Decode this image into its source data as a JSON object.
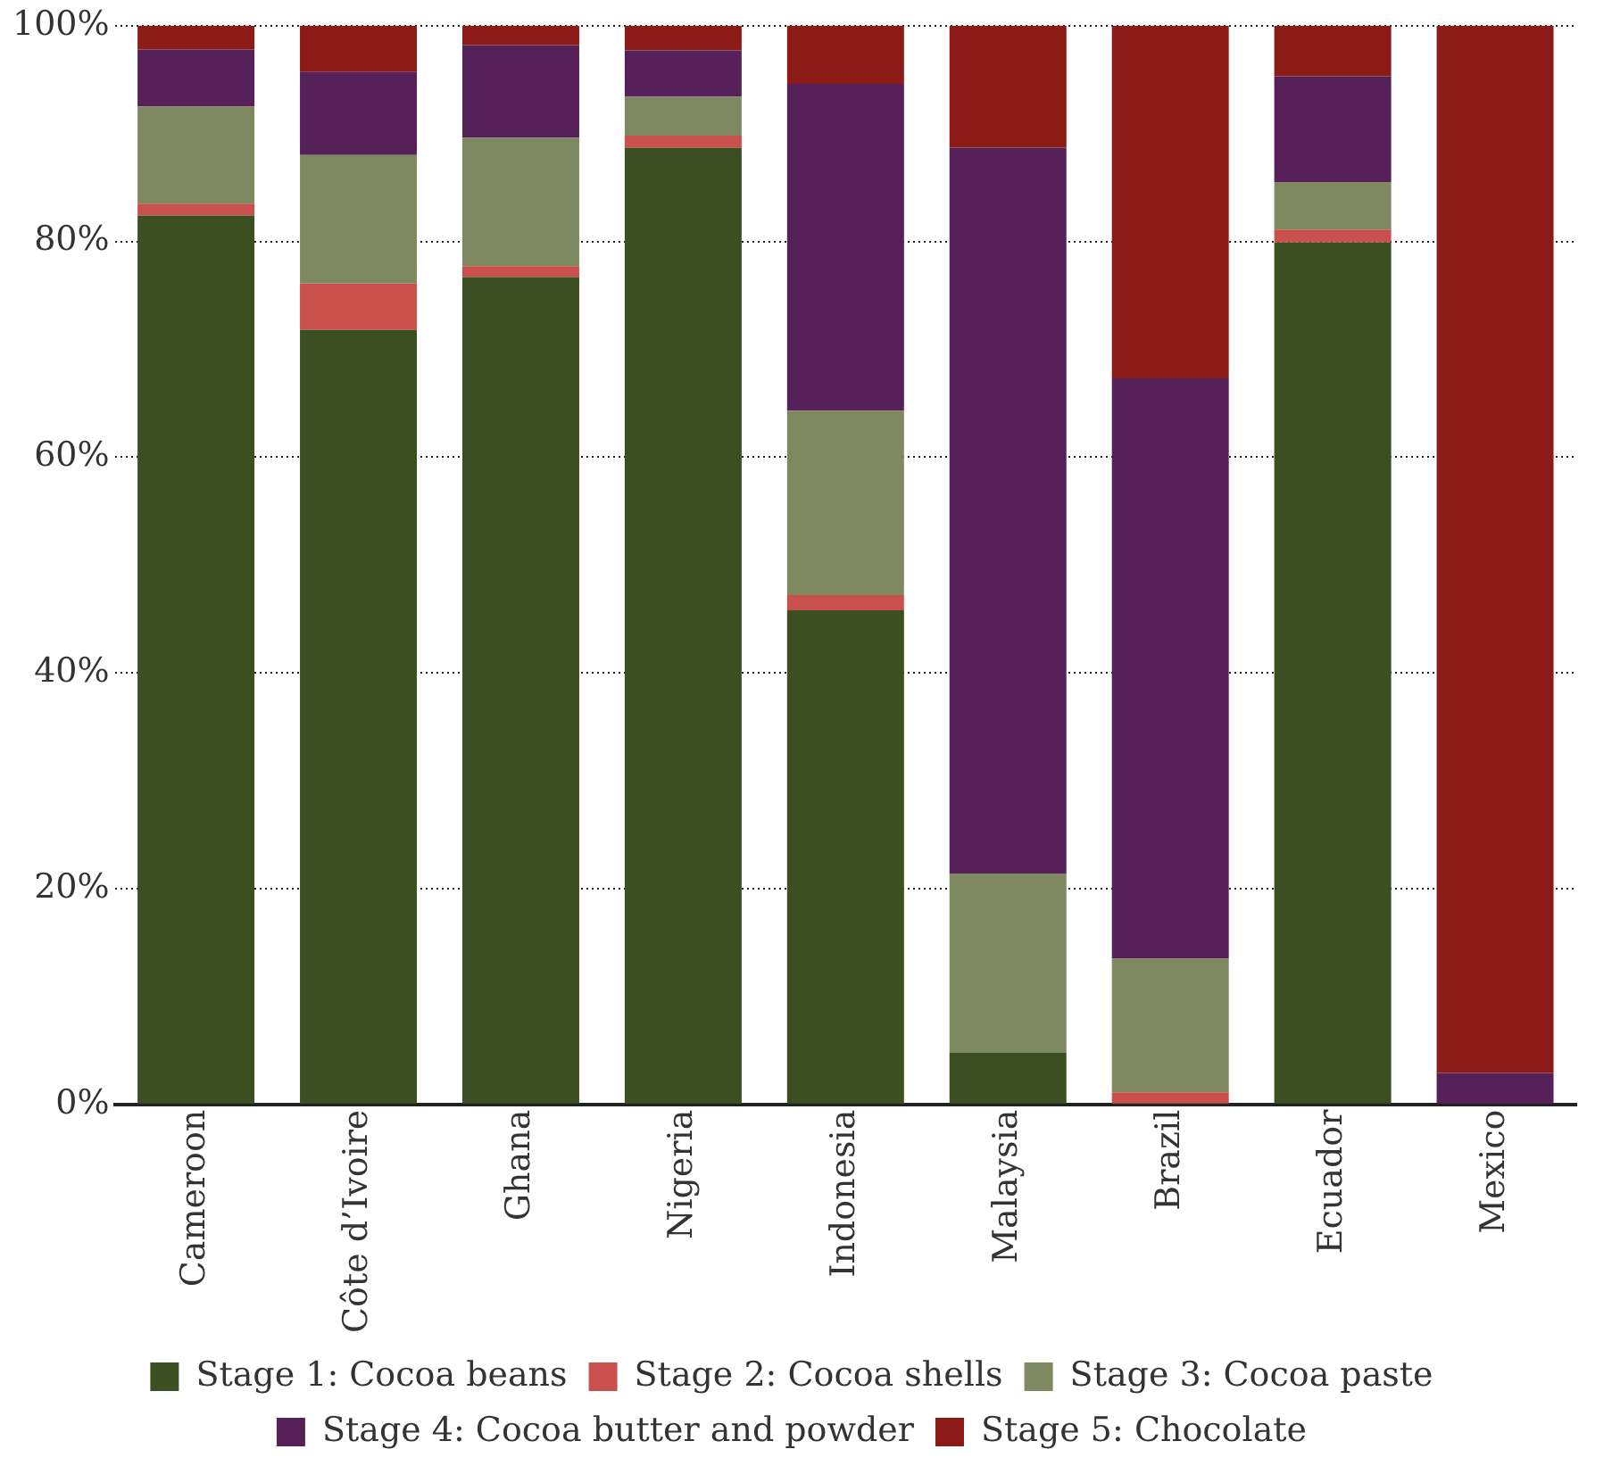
{
  "chart_data": {
    "type": "bar",
    "stacked": true,
    "categories": [
      "Cameroon",
      "Côte d’Ivoire",
      "Ghana",
      "Nigeria",
      "Indonesia",
      "Malaysia",
      "Brazil",
      "Ecuador",
      "Mexico"
    ],
    "series": [
      {
        "name": "Stage 1: Cocoa beans",
        "color": "#3b4f22",
        "values": [
          82.4,
          71.8,
          76.7,
          88.7,
          45.8,
          4.8,
          0,
          79.9,
          0
        ]
      },
      {
        "name": "Stage 2: Cocoa shells",
        "color": "#c9504d",
        "values": [
          1.1,
          4.3,
          1.0,
          1.1,
          1.4,
          0,
          1.1,
          1.2,
          0
        ]
      },
      {
        "name": "Stage 3: Cocoa paste",
        "color": "#7f8961",
        "values": [
          9.0,
          11.9,
          11.9,
          3.6,
          17.1,
          16.6,
          12.4,
          4.4,
          0
        ]
      },
      {
        "name": "Stage 4: Cocoa butter and powder",
        "color": "#562059",
        "values": [
          5.3,
          7.7,
          8.6,
          4.3,
          30.3,
          67.3,
          53.8,
          9.8,
          2.9
        ]
      },
      {
        "name": "Stage 5: Chocolate",
        "color": "#8c1a17",
        "values": [
          2.2,
          4.3,
          1.8,
          2.3,
          5.4,
          11.3,
          32.7,
          4.7,
          97.1
        ]
      }
    ],
    "ylim": [
      0,
      100
    ],
    "yticks": [
      {
        "value": 0,
        "label": "0%"
      },
      {
        "value": 20,
        "label": "20%"
      },
      {
        "value": 40,
        "label": "40%"
      },
      {
        "value": 60,
        "label": "60%"
      },
      {
        "value": 80,
        "label": "80%"
      },
      {
        "value": 100,
        "label": "100%"
      }
    ],
    "grid": "y",
    "legend": "bottom"
  }
}
